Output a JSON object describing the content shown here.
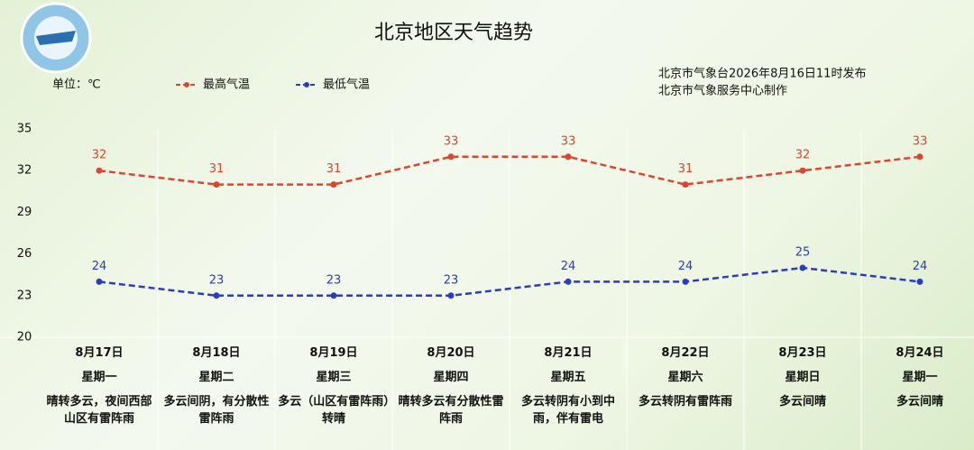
{
  "title": "北京地区天气趋势",
  "issuer": [
    "北京市气象台2026年8月16日11时发布",
    "北京市气象服务中心制作"
  ],
  "chart_data": {
    "type": "line",
    "unit_label": "单位：℃",
    "categories": [
      "8月17日",
      "8月18日",
      "8月19日",
      "8月20日",
      "8月21日",
      "8月22日",
      "8月23日",
      "8月24日"
    ],
    "weekdays": [
      "星期一",
      "星期二",
      "星期三",
      "星期四",
      "星期五",
      "星期六",
      "星期日",
      "星期一"
    ],
    "weather": [
      "晴转多云，夜间西部山区有雷阵雨",
      "多云间阴，有分散性雷阵雨",
      "多云（山区有雷阵雨）转晴",
      "晴转多云有分散性雷阵雨",
      "多云转阴有小到中雨，伴有雷电",
      "多云转阴有雷阵雨",
      "多云间晴",
      "多云间晴"
    ],
    "series": [
      {
        "name": "最高气温",
        "color": "#e0452c",
        "values": [
          32,
          31,
          31,
          33,
          33,
          31,
          32,
          33
        ]
      },
      {
        "name": "最低气温",
        "color": "#2a3dbd",
        "values": [
          24,
          23,
          23,
          23,
          24,
          24,
          25,
          24
        ]
      }
    ],
    "ylim": [
      20,
      35
    ],
    "yticks": [
      20,
      23,
      26,
      29,
      32,
      35
    ]
  }
}
